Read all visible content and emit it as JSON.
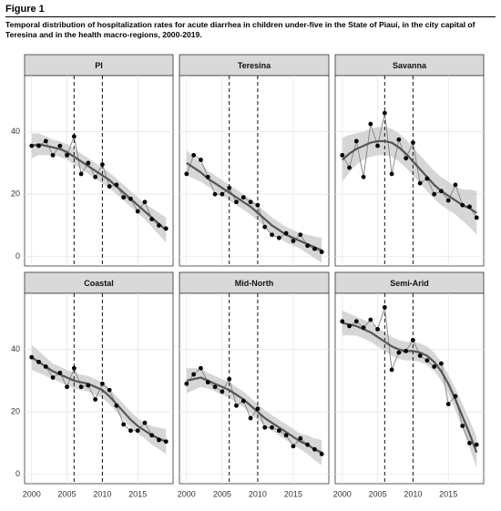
{
  "figure_label": "Figure 1",
  "caption": "Temporal distribution of hospitalization rates for acute diarrhea in children under-five in the State of Piauí, in the city capital of Teresina and in the health macro-regions, 2000-2019.",
  "chart_data": [
    {
      "type": "line",
      "title": "PI",
      "x": [
        2000,
        2001,
        2002,
        2003,
        2004,
        2005,
        2006,
        2007,
        2008,
        2009,
        2010,
        2011,
        2012,
        2013,
        2014,
        2015,
        2016,
        2017,
        2018,
        2019
      ],
      "values": [
        35.5,
        35.5,
        37,
        32.5,
        35.5,
        32.5,
        38.5,
        26.5,
        30,
        25.5,
        29.5,
        22.5,
        23,
        19,
        18.5,
        14.5,
        17.5,
        12,
        10,
        9
      ],
      "trend": [
        35.5,
        36,
        35.5,
        35,
        34.5,
        33.5,
        32,
        30.5,
        29,
        27.5,
        26,
        24.5,
        22.5,
        20.5,
        18.5,
        16.5,
        14.5,
        12.5,
        10.5,
        8.5
      ],
      "lower": [
        31.5,
        32.5,
        32.5,
        32.5,
        32,
        31,
        29.5,
        28,
        26.5,
        25,
        23.5,
        22,
        20,
        18,
        16,
        14,
        12,
        9.5,
        7,
        4.5
      ],
      "upper": [
        39.5,
        39.5,
        38.5,
        37.5,
        37,
        36,
        34.5,
        33,
        31.5,
        30,
        28.5,
        27,
        25,
        23,
        21,
        19,
        17,
        15.5,
        14,
        12.5
      ],
      "vlines": [
        2006,
        2010
      ],
      "xlim": [
        1999,
        2020
      ],
      "ylim": [
        -3,
        58
      ],
      "xticks": [
        2000,
        2005,
        2010,
        2015
      ],
      "yticks": [
        0,
        20,
        40
      ],
      "grid": true,
      "point_color": "#000000",
      "line_color": "#8a8a8a",
      "trend_color": "#555555",
      "band_color": "#c8c8c8"
    },
    {
      "type": "line",
      "title": "Teresina",
      "x": [
        2000,
        2001,
        2002,
        2003,
        2004,
        2005,
        2006,
        2007,
        2008,
        2009,
        2010,
        2011,
        2012,
        2013,
        2014,
        2015,
        2016,
        2017,
        2018,
        2019
      ],
      "values": [
        26.5,
        32.5,
        31,
        25.5,
        20,
        20,
        22,
        17.5,
        19,
        17.5,
        16.5,
        9.5,
        7,
        6,
        7.5,
        5,
        7,
        3.5,
        2.5,
        1.5
      ],
      "trend": [
        30,
        28.5,
        27,
        25,
        23.5,
        22,
        20.5,
        19,
        17.5,
        16,
        14,
        12,
        10,
        8.5,
        7,
        6,
        5,
        4,
        3,
        2
      ],
      "lower": [
        26,
        25,
        24,
        22.5,
        21,
        19.5,
        18,
        16.5,
        15,
        13.5,
        11.5,
        9.5,
        7.5,
        6,
        4.5,
        3.5,
        2.5,
        1,
        -0.5,
        -2
      ],
      "upper": [
        34,
        32,
        30,
        27.5,
        26,
        24.5,
        23,
        21.5,
        20,
        18.5,
        16.5,
        14.5,
        12.5,
        11,
        9.5,
        8.5,
        7.5,
        7,
        6.5,
        6
      ],
      "vlines": [
        2006,
        2010
      ],
      "xlim": [
        1999,
        2020
      ],
      "ylim": [
        -3,
        58
      ],
      "xticks": [
        2000,
        2005,
        2010,
        2015
      ],
      "yticks": [
        0,
        20,
        40
      ],
      "grid": true,
      "point_color": "#000000",
      "line_color": "#8a8a8a",
      "trend_color": "#555555",
      "band_color": "#c8c8c8"
    },
    {
      "type": "line",
      "title": "Savanna",
      "x": [
        2000,
        2001,
        2002,
        2003,
        2004,
        2005,
        2006,
        2007,
        2008,
        2009,
        2010,
        2011,
        2012,
        2013,
        2014,
        2015,
        2016,
        2017,
        2018,
        2019
      ],
      "values": [
        32.5,
        28.5,
        37,
        25.5,
        42.5,
        35.5,
        46,
        26.5,
        37.5,
        31.5,
        36.5,
        23.5,
        25,
        20,
        21,
        18,
        23,
        16.5,
        16,
        12.5
      ],
      "trend": [
        31,
        33,
        34.5,
        35.5,
        36.5,
        37,
        37,
        36.5,
        35,
        33,
        30.5,
        28,
        25.5,
        23,
        21,
        19.5,
        18,
        16.5,
        15.5,
        14
      ],
      "lower": [
        24,
        27,
        29.5,
        31,
        32,
        32.5,
        32.5,
        32,
        30.5,
        28.5,
        26,
        23.5,
        21,
        18.5,
        16.5,
        15,
        13.5,
        11.5,
        9.5,
        7
      ],
      "upper": [
        38,
        39,
        39.5,
        40,
        41,
        41.5,
        41.5,
        41,
        39.5,
        37.5,
        35,
        32.5,
        30,
        27.5,
        25.5,
        24,
        22.5,
        21.5,
        21.5,
        21
      ],
      "vlines": [
        2006,
        2010
      ],
      "xlim": [
        1999,
        2020
      ],
      "ylim": [
        -3,
        58
      ],
      "xticks": [
        2000,
        2005,
        2010,
        2015
      ],
      "yticks": [
        0,
        20,
        40
      ],
      "grid": true,
      "point_color": "#000000",
      "line_color": "#8a8a8a",
      "trend_color": "#555555",
      "band_color": "#c8c8c8"
    },
    {
      "type": "line",
      "title": "Coastal",
      "x": [
        2000,
        2001,
        2002,
        2003,
        2004,
        2005,
        2006,
        2007,
        2008,
        2009,
        2010,
        2011,
        2012,
        2013,
        2014,
        2015,
        2016,
        2017,
        2018,
        2019
      ],
      "values": [
        37.5,
        36,
        34.5,
        31,
        32.5,
        28,
        34,
        28,
        28.5,
        24,
        29,
        27,
        22,
        16,
        14,
        14,
        16.5,
        12.5,
        11,
        10.5
      ],
      "trend": [
        37.5,
        36,
        34.5,
        33,
        32,
        31,
        30,
        29.5,
        29,
        28,
        27,
        25,
        22.5,
        20,
        17.5,
        15.5,
        14,
        12.5,
        11.5,
        10.5
      ],
      "lower": [
        33.5,
        32.5,
        31.5,
        30.5,
        29.5,
        28.5,
        27.5,
        27,
        26.5,
        25.5,
        24.5,
        22.5,
        20,
        17.5,
        15,
        13,
        11.5,
        9.5,
        8,
        6.5
      ],
      "upper": [
        41.5,
        39.5,
        37.5,
        35.5,
        34.5,
        33.5,
        32.5,
        32,
        31.5,
        30.5,
        29.5,
        27.5,
        25,
        22.5,
        20,
        18,
        16.5,
        15.5,
        15,
        14.5
      ],
      "vlines": [
        2006,
        2010
      ],
      "xlim": [
        1999,
        2020
      ],
      "ylim": [
        -3,
        58
      ],
      "xticks": [
        2000,
        2005,
        2010,
        2015
      ],
      "yticks": [
        0,
        20,
        40
      ],
      "grid": true,
      "point_color": "#000000",
      "line_color": "#8a8a8a",
      "trend_color": "#555555",
      "band_color": "#c8c8c8"
    },
    {
      "type": "line",
      "title": "Mid-North",
      "x": [
        2000,
        2001,
        2002,
        2003,
        2004,
        2005,
        2006,
        2007,
        2008,
        2009,
        2010,
        2011,
        2012,
        2013,
        2014,
        2015,
        2016,
        2017,
        2018,
        2019
      ],
      "values": [
        29,
        32,
        34,
        29.5,
        28,
        26.5,
        30.5,
        22,
        23.5,
        18,
        21,
        15,
        15,
        14,
        12.5,
        9,
        11.5,
        9.5,
        8,
        6.5
      ],
      "trend": [
        30,
        30.5,
        31,
        30,
        29,
        28,
        27,
        25.5,
        24,
        22,
        20,
        18,
        16.5,
        15,
        13.5,
        12,
        10.5,
        9.5,
        8,
        7
      ],
      "lower": [
        26,
        27,
        28,
        27.5,
        26.5,
        25.5,
        24.5,
        23,
        21.5,
        19.5,
        17.5,
        15.5,
        14,
        12.5,
        11,
        9.5,
        8,
        6.5,
        4.5,
        3
      ],
      "upper": [
        34,
        34,
        34,
        32.5,
        31.5,
        30.5,
        29.5,
        28,
        26.5,
        24.5,
        22.5,
        20.5,
        19,
        17.5,
        16,
        14.5,
        13,
        12.5,
        11.5,
        11
      ],
      "vlines": [
        2006,
        2010
      ],
      "xlim": [
        1999,
        2020
      ],
      "ylim": [
        -3,
        58
      ],
      "xticks": [
        2000,
        2005,
        2010,
        2015
      ],
      "yticks": [
        0,
        20,
        40
      ],
      "grid": true,
      "point_color": "#000000",
      "line_color": "#8a8a8a",
      "trend_color": "#555555",
      "band_color": "#c8c8c8"
    },
    {
      "type": "line",
      "title": "Semi-Arid",
      "x": [
        2000,
        2001,
        2002,
        2003,
        2004,
        2005,
        2006,
        2007,
        2008,
        2009,
        2010,
        2011,
        2012,
        2013,
        2014,
        2015,
        2016,
        2017,
        2018,
        2019
      ],
      "values": [
        49,
        47.5,
        49,
        47,
        49.5,
        46.5,
        53.5,
        33.5,
        39,
        39.5,
        43,
        38,
        36.5,
        34.5,
        35.5,
        22.5,
        25,
        15.5,
        10,
        9.5
      ],
      "trend": [
        48.5,
        48,
        47.5,
        46.5,
        45.5,
        44,
        42.5,
        41,
        40,
        39.5,
        39.5,
        39,
        38,
        36,
        33,
        29,
        24,
        18.5,
        13,
        7
      ],
      "lower": [
        44.5,
        44.5,
        44.5,
        43.5,
        42.5,
        41,
        39.5,
        38,
        37,
        36.5,
        36.5,
        36,
        35,
        33,
        30,
        26,
        20.5,
        14.5,
        8.5,
        2
      ],
      "upper": [
        52.5,
        51.5,
        50.5,
        49.5,
        48.5,
        47,
        45.5,
        44,
        43,
        42.5,
        42.5,
        42,
        41,
        39,
        36,
        32,
        27.5,
        22.5,
        17.5,
        12
      ],
      "vlines": [
        2006,
        2010
      ],
      "xlim": [
        1999,
        2020
      ],
      "ylim": [
        -3,
        58
      ],
      "xticks": [
        2000,
        2005,
        2010,
        2015
      ],
      "yticks": [
        0,
        20,
        40
      ],
      "grid": true,
      "point_color": "#000000",
      "line_color": "#8a8a8a",
      "trend_color": "#555555",
      "band_color": "#c8c8c8"
    }
  ]
}
